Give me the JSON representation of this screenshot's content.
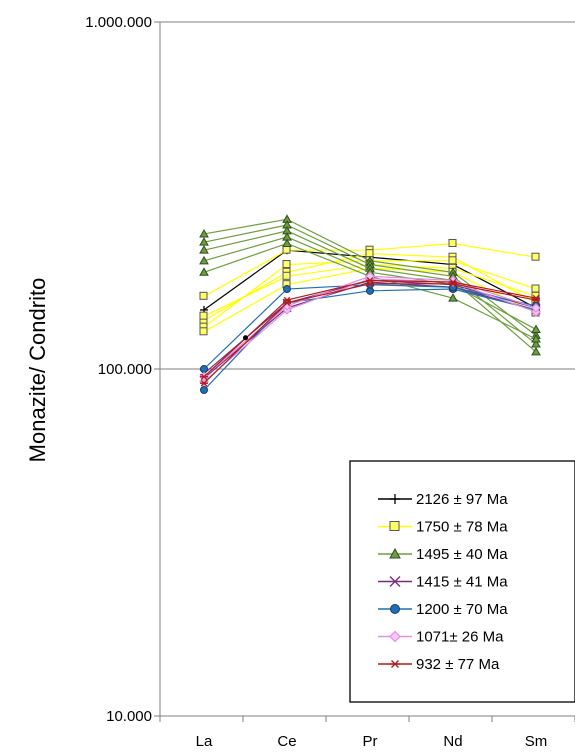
{
  "chart_data": {
    "type": "line",
    "title": "",
    "xlabel": "",
    "ylabel": "Monazite/ Condrito",
    "yscale": "log",
    "ylim": [
      10,
      1000
    ],
    "ytick_values": [
      1000,
      100,
      10
    ],
    "ytick_labels": [
      "1.000.000",
      "100.000",
      "10.000"
    ],
    "categories": [
      "La",
      "Ce",
      "Pr",
      "Nd",
      "Sm"
    ],
    "gridlines": "horizontal",
    "legend": {
      "position": "bottom-right",
      "entries": [
        "2126 ± 97 Ma",
        "1750 ± 78 Ma",
        "1495 ± 40 Ma",
        "1415 ± 41 Ma",
        "1200 ± 70 Ma",
        "1071± 26 Ma",
        "932 ± 77 Ma"
      ]
    },
    "series": [
      {
        "name": "2126 ± 97 Ma",
        "color": "#000000",
        "marker": "plus",
        "lines": [
          [
            148,
            220,
            210,
            200,
            150
          ]
        ]
      },
      {
        "name": "1750 ± 78 Ma",
        "color": "#ffff00",
        "marker": "square",
        "lines": [
          [
            162,
            220,
            220,
            230,
            210
          ],
          [
            138,
            190,
            215,
            210,
            155
          ],
          [
            132,
            200,
            205,
            205,
            170
          ],
          [
            142,
            185,
            200,
            195,
            162
          ],
          [
            128,
            175,
            195,
            190,
            145
          ]
        ]
      },
      {
        "name": "1495 ± 40 Ma",
        "color": "#6e9e3e",
        "marker": "triangle",
        "lines": [
          [
            245,
            270,
            205,
            190,
            125
          ],
          [
            232,
            260,
            200,
            185,
            118
          ],
          [
            220,
            250,
            195,
            180,
            112
          ],
          [
            205,
            240,
            190,
            175,
            130
          ],
          [
            190,
            230,
            185,
            160,
            122
          ]
        ]
      },
      {
        "name": "1415 ± 41 Ma",
        "color": "#7a2d7a",
        "marker": "x",
        "lines": [
          [
            97,
            155,
            180,
            175,
            150
          ],
          [
            94,
            150,
            178,
            172,
            148
          ]
        ]
      },
      {
        "name": "1200 ± 70 Ma",
        "color": "#1f6fb4",
        "marker": "circle",
        "lines": [
          [
            87,
            155,
            168,
            170,
            148
          ],
          [
            100,
            170,
            175,
            172,
            152
          ]
        ]
      },
      {
        "name": "1071± 26 Ma",
        "color": "#e48ee4",
        "marker": "diamond",
        "lines": [
          [
            92,
            148,
            182,
            178,
            146
          ],
          [
            95,
            152,
            185,
            180,
            150
          ]
        ]
      },
      {
        "name": "932 ± 77 Ma",
        "color": "#b01d1d",
        "marker": "star",
        "lines": [
          [
            91,
            155,
            176,
            176,
            158
          ],
          [
            95,
            158,
            180,
            178,
            160
          ]
        ]
      }
    ],
    "extra_points": [
      {
        "category_pos": 0.5,
        "value": 123,
        "color": "#000000",
        "marker": "dot"
      }
    ]
  }
}
